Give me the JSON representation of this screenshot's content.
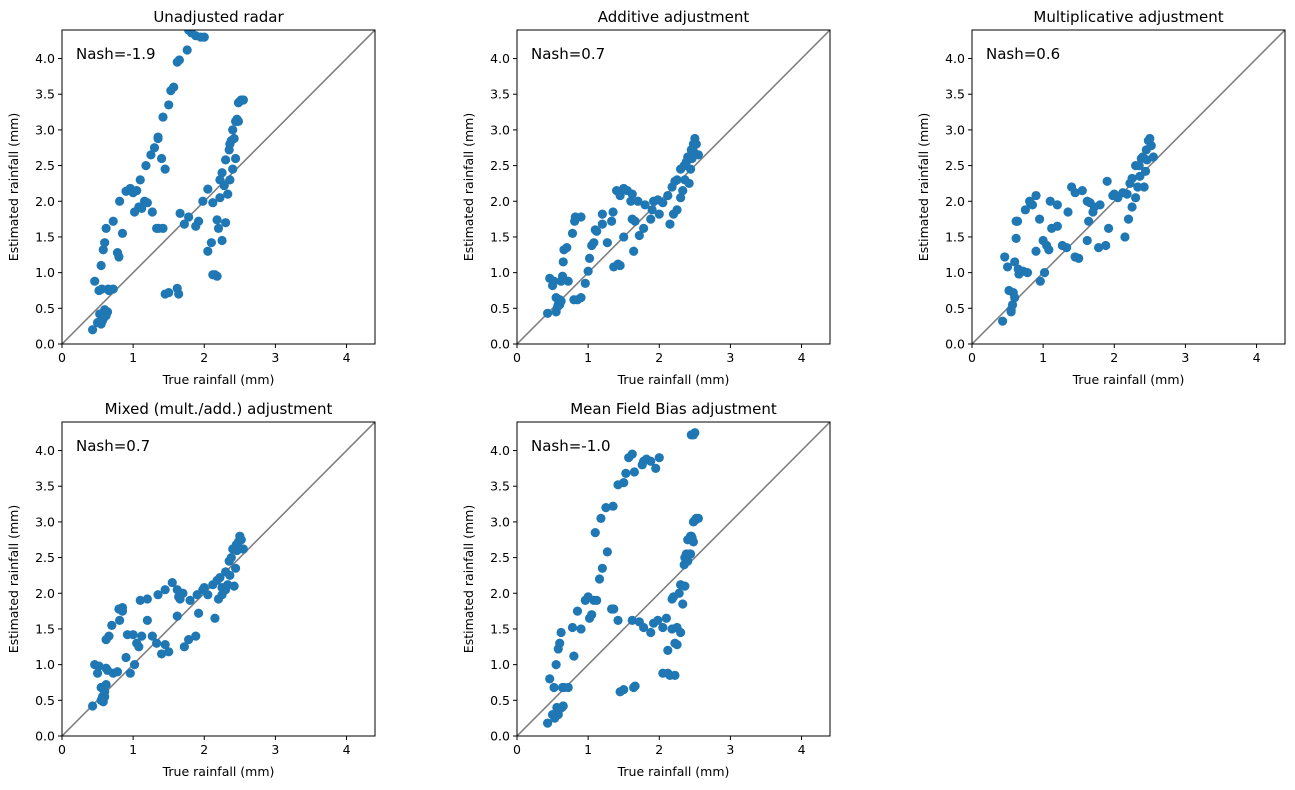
{
  "colors": {
    "points": "#1f77b4",
    "diagonal": "#808080",
    "frame": "#000000",
    "background": "#ffffff"
  },
  "chart_data": [
    {
      "type": "scatter",
      "title": "Unadjusted radar",
      "xlabel": "True rainfall (mm)",
      "ylabel": "Estimated rainfall (mm)",
      "xlim": [
        0,
        4.4
      ],
      "ylim": [
        0,
        4.4
      ],
      "xticks": [
        "0",
        "1",
        "2",
        "3",
        "4"
      ],
      "yticks": [
        "0.0",
        "0.5",
        "1.0",
        "1.5",
        "2.0",
        "2.5",
        "3.0",
        "3.5",
        "4.0"
      ],
      "annotation": "Nash=-1.9",
      "grid": false,
      "reference_line": "y=x",
      "x": [
        0.43,
        0.46,
        0.52,
        0.55,
        0.58,
        0.6,
        0.62,
        0.64,
        0.66,
        0.5,
        0.53,
        0.56,
        0.58,
        0.6,
        0.63,
        0.65,
        0.72,
        0.55,
        0.57,
        0.6,
        0.62,
        0.72,
        0.78,
        0.81,
        0.8,
        0.85,
        0.9,
        0.96,
        1.0,
        1.02,
        1.05,
        1.08,
        1.12,
        1.16,
        1.2,
        1.27,
        1.33,
        1.36,
        1.42,
        1.45,
        1.5,
        1.62,
        1.64,
        1.66,
        1.72,
        1.78,
        1.88,
        1.92,
        1.98,
        2.05,
        2.12,
        2.18,
        2.22,
        2.25,
        2.1,
        2.05,
        2.22,
        2.28,
        2.3,
        2.35,
        2.36,
        2.38,
        2.4,
        2.45,
        2.48,
        2.5,
        2.52,
        2.55,
        2.42,
        2.44,
        2.46,
        2.48,
        2.44,
        2.4,
        2.36,
        2.33,
        2.3,
        2.25,
        2.2,
        2.18,
        2.15,
        2.12,
        1.1,
        1.18,
        1.25,
        1.35,
        1.42,
        1.5,
        1.53,
        1.57,
        1.62,
        1.65,
        1.76,
        1.78,
        1.82,
        1.88,
        1.95,
        2.0,
        1.3,
        1.35,
        1.4,
        1.45
      ],
      "y": [
        0.2,
        0.88,
        0.75,
        1.1,
        1.32,
        1.42,
        1.62,
        0.45,
        0.75,
        0.3,
        0.42,
        0.77,
        0.36,
        0.48,
        0.45,
        0.77,
        0.77,
        0.28,
        0.33,
        0.38,
        0.4,
        1.72,
        1.28,
        2.0,
        1.22,
        1.55,
        2.14,
        2.18,
        2.12,
        1.85,
        2.15,
        1.92,
        1.9,
        2.0,
        1.98,
        1.85,
        1.62,
        1.62,
        1.62,
        0.7,
        0.72,
        0.78,
        0.7,
        1.83,
        1.68,
        1.78,
        1.65,
        1.72,
        2.0,
        2.17,
        1.98,
        1.74,
        2.3,
        2.4,
        1.42,
        1.3,
        2.05,
        2.22,
        2.58,
        2.72,
        2.8,
        2.85,
        3.0,
        3.12,
        3.38,
        3.4,
        3.42,
        3.42,
        2.88,
        3.12,
        3.15,
        3.12,
        2.6,
        2.45,
        2.3,
        2.1,
        1.7,
        1.45,
        1.62,
        0.95,
        0.97,
        0.97,
        2.3,
        2.5,
        2.65,
        2.9,
        3.18,
        3.35,
        3.55,
        3.6,
        3.95,
        3.98,
        4.12,
        4.4,
        4.36,
        4.32,
        4.3,
        4.3,
        2.75,
        2.88,
        2.6,
        2.45
      ]
    },
    {
      "type": "scatter",
      "title": "Additive adjustment",
      "xlabel": "True rainfall (mm)",
      "ylabel": "Estimated rainfall (mm)",
      "xlim": [
        0,
        4.4
      ],
      "ylim": [
        0,
        4.4
      ],
      "xticks": [
        "0",
        "1",
        "2",
        "3",
        "4"
      ],
      "yticks": [
        "0.0",
        "0.5",
        "1.0",
        "1.5",
        "2.0",
        "2.5",
        "3.0",
        "3.5",
        "4.0"
      ],
      "annotation": "Nash=0.7",
      "grid": false,
      "reference_line": "y=x",
      "x": [
        0.43,
        0.46,
        0.5,
        0.52,
        0.55,
        0.58,
        0.6,
        0.62,
        0.64,
        0.66,
        0.55,
        0.57,
        0.6,
        0.62,
        0.72,
        0.78,
        0.81,
        0.8,
        0.85,
        0.9,
        0.96,
        1.0,
        1.02,
        1.05,
        1.08,
        1.12,
        1.2,
        1.27,
        1.33,
        1.36,
        1.42,
        1.45,
        1.5,
        1.62,
        1.64,
        1.66,
        1.72,
        1.78,
        1.88,
        1.92,
        1.98,
        2.05,
        2.12,
        2.18,
        2.22,
        2.25,
        2.3,
        2.35,
        2.38,
        2.4,
        2.45,
        2.48,
        2.5,
        2.52,
        2.55,
        2.42,
        2.44,
        2.46,
        2.48,
        2.36,
        2.33,
        2.3,
        2.25,
        2.2,
        2.15,
        1.1,
        1.2,
        1.35,
        1.45,
        1.55,
        1.62,
        1.7,
        1.8,
        1.9,
        2.0,
        0.65,
        0.7,
        0.82,
        0.9,
        1.4,
        1.5,
        1.6
      ],
      "y": [
        0.43,
        0.92,
        0.82,
        0.88,
        0.65,
        0.55,
        0.62,
        0.88,
        0.95,
        1.32,
        0.45,
        0.52,
        0.55,
        0.6,
        0.88,
        1.55,
        1.72,
        0.62,
        0.62,
        0.65,
        0.85,
        1.02,
        1.2,
        1.38,
        1.42,
        1.58,
        1.82,
        1.42,
        1.72,
        1.08,
        1.12,
        1.1,
        1.5,
        1.75,
        1.3,
        1.72,
        1.52,
        1.62,
        1.75,
        2.0,
        2.02,
        1.98,
        2.08,
        2.2,
        2.28,
        2.3,
        2.45,
        2.5,
        2.55,
        2.62,
        2.72,
        2.8,
        2.88,
        2.8,
        2.65,
        2.25,
        2.45,
        2.6,
        2.7,
        2.3,
        2.15,
        2.05,
        1.88,
        1.82,
        1.68,
        1.6,
        1.68,
        1.85,
        2.08,
        2.15,
        2.1,
        2.0,
        1.95,
        1.88,
        1.82,
        1.15,
        1.35,
        1.78,
        1.78,
        2.15,
        2.18,
        2.0
      ],
      "_note": ""
    },
    {
      "type": "scatter",
      "title": "Multiplicative adjustment",
      "xlabel": "True rainfall (mm)",
      "ylabel": "Estimated rainfall (mm)",
      "xlim": [
        0,
        4.4
      ],
      "ylim": [
        0,
        4.4
      ],
      "xticks": [
        "0",
        "1",
        "2",
        "3",
        "4"
      ],
      "yticks": [
        "0.0",
        "0.5",
        "1.0",
        "1.5",
        "2.0",
        "2.5",
        "3.0",
        "3.5",
        "4.0"
      ],
      "annotation": "Nash=0.6",
      "grid": false,
      "reference_line": "y=x",
      "x": [
        0.43,
        0.46,
        0.5,
        0.52,
        0.55,
        0.58,
        0.6,
        0.62,
        0.64,
        0.66,
        0.55,
        0.57,
        0.6,
        0.62,
        0.72,
        0.78,
        0.81,
        0.85,
        0.9,
        0.96,
        1.0,
        1.02,
        1.05,
        1.08,
        1.12,
        1.2,
        1.27,
        1.33,
        1.4,
        1.45,
        1.5,
        1.62,
        1.64,
        1.66,
        1.72,
        1.78,
        1.88,
        1.92,
        1.98,
        2.05,
        2.12,
        2.18,
        2.22,
        2.25,
        2.3,
        2.35,
        2.38,
        2.4,
        2.45,
        2.48,
        2.5,
        2.52,
        2.55,
        2.42,
        2.44,
        2.46,
        2.36,
        2.33,
        2.3,
        2.25,
        2.2,
        2.15,
        1.1,
        1.2,
        1.35,
        1.45,
        1.55,
        1.62,
        1.7,
        1.8,
        1.9,
        2.0,
        0.65,
        0.75,
        0.82,
        0.9,
        0.95
      ],
      "y": [
        0.32,
        1.22,
        1.08,
        0.75,
        0.45,
        0.72,
        0.65,
        1.72,
        1.72,
        0.98,
        0.48,
        0.55,
        1.15,
        1.48,
        1.02,
        1.0,
        2.0,
        1.95,
        1.3,
        0.88,
        1.45,
        1.0,
        1.38,
        1.32,
        1.62,
        1.65,
        1.38,
        1.35,
        2.2,
        1.22,
        1.2,
        1.45,
        1.72,
        1.98,
        1.92,
        1.35,
        1.38,
        1.62,
        2.08,
        2.05,
        2.12,
        2.1,
        2.25,
        2.32,
        2.5,
        2.5,
        2.6,
        2.62,
        2.72,
        2.85,
        2.88,
        2.78,
        2.62,
        2.2,
        2.42,
        2.58,
        2.35,
        2.2,
        2.05,
        1.92,
        1.75,
        1.5,
        2.0,
        1.95,
        1.85,
        2.12,
        2.15,
        2.0,
        1.85,
        1.95,
        2.28,
        2.1,
        1.05,
        1.88,
        1.98,
        2.08,
        1.75
      ]
    },
    {
      "type": "scatter",
      "title": "Mixed (mult./add.) adjustment",
      "xlabel": "True rainfall (mm)",
      "ylabel": "Estimated rainfall (mm)",
      "xlim": [
        0,
        4.4
      ],
      "ylim": [
        0,
        4.4
      ],
      "xticks": [
        "0",
        "1",
        "2",
        "3",
        "4"
      ],
      "yticks": [
        "0.0",
        "0.5",
        "1.0",
        "1.5",
        "2.0",
        "2.5",
        "3.0",
        "3.5",
        "4.0"
      ],
      "annotation": "Nash=0.7",
      "grid": false,
      "reference_line": "y=x",
      "x": [
        0.43,
        0.46,
        0.5,
        0.52,
        0.55,
        0.58,
        0.6,
        0.62,
        0.64,
        0.66,
        0.55,
        0.57,
        0.6,
        0.62,
        0.72,
        0.78,
        0.81,
        0.85,
        0.9,
        0.96,
        1.0,
        1.02,
        1.05,
        1.08,
        1.12,
        1.2,
        1.27,
        1.33,
        1.4,
        1.45,
        1.5,
        1.62,
        1.64,
        1.66,
        1.72,
        1.78,
        1.88,
        1.92,
        1.98,
        2.05,
        2.12,
        2.18,
        2.22,
        2.25,
        2.3,
        2.35,
        2.38,
        2.4,
        2.45,
        2.48,
        2.5,
        2.52,
        2.55,
        2.42,
        2.44,
        2.46,
        2.36,
        2.33,
        2.3,
        2.25,
        2.2,
        2.15,
        1.1,
        1.2,
        1.35,
        1.45,
        1.55,
        1.62,
        1.7,
        1.8,
        1.9,
        2.0,
        0.62,
        0.7,
        0.8,
        0.85,
        0.92
      ],
      "y": [
        0.42,
        1.0,
        0.88,
        0.98,
        0.68,
        0.48,
        0.55,
        0.95,
        0.92,
        1.4,
        0.5,
        0.55,
        0.62,
        0.72,
        0.88,
        0.9,
        1.62,
        1.8,
        1.1,
        0.88,
        1.42,
        1.0,
        1.3,
        1.25,
        1.4,
        1.62,
        1.4,
        1.3,
        1.15,
        1.28,
        1.18,
        1.68,
        1.95,
        1.92,
        1.25,
        1.35,
        1.4,
        1.72,
        2.05,
        1.98,
        2.12,
        2.18,
        2.22,
        2.08,
        2.3,
        2.45,
        2.5,
        2.62,
        2.68,
        2.72,
        2.8,
        2.75,
        2.62,
        2.1,
        2.35,
        2.6,
        2.25,
        2.12,
        2.05,
        1.98,
        1.92,
        1.65,
        1.9,
        1.92,
        1.98,
        2.05,
        2.15,
        2.05,
        2.0,
        1.9,
        1.98,
        2.08,
        1.35,
        1.55,
        1.78,
        1.75,
        1.42
      ]
    },
    {
      "type": "scatter",
      "title": "Mean Field Bias adjustment",
      "xlabel": "True rainfall (mm)",
      "ylabel": "Estimated rainfall (mm)",
      "xlim": [
        0,
        4.4
      ],
      "ylim": [
        0,
        4.4
      ],
      "xticks": [
        "0",
        "1",
        "2",
        "3",
        "4"
      ],
      "yticks": [
        "0.0",
        "0.5",
        "1.0",
        "1.5",
        "2.0",
        "2.5",
        "3.0",
        "3.5",
        "4.0"
      ],
      "annotation": "Nash=-1.0",
      "grid": false,
      "reference_line": "y=x",
      "x": [
        0.43,
        0.46,
        0.52,
        0.55,
        0.58,
        0.6,
        0.62,
        0.64,
        0.66,
        0.5,
        0.53,
        0.56,
        0.58,
        0.6,
        0.63,
        0.65,
        0.72,
        0.78,
        0.8,
        0.85,
        0.9,
        0.96,
        1.0,
        1.02,
        1.05,
        1.08,
        1.12,
        1.16,
        1.2,
        1.27,
        1.33,
        1.36,
        1.42,
        1.45,
        1.5,
        1.62,
        1.64,
        1.66,
        1.72,
        1.78,
        1.88,
        1.92,
        1.98,
        2.05,
        2.12,
        2.18,
        2.22,
        2.25,
        2.1,
        2.05,
        2.22,
        2.28,
        2.3,
        2.35,
        2.36,
        2.38,
        2.4,
        2.45,
        2.48,
        2.5,
        2.52,
        2.55,
        2.42,
        2.44,
        2.46,
        2.48,
        2.44,
        2.4,
        2.36,
        2.33,
        2.3,
        2.25,
        2.2,
        2.18,
        2.15,
        2.12,
        1.1,
        1.18,
        1.25,
        1.35,
        1.42,
        1.5,
        1.53,
        1.57,
        1.62,
        1.65,
        1.76,
        1.78,
        1.82,
        1.88,
        1.95,
        2.0,
        2.45,
        2.48,
        2.5
      ],
      "y": [
        0.18,
        0.8,
        0.68,
        1.0,
        1.22,
        1.3,
        1.45,
        0.68,
        0.68,
        0.3,
        0.25,
        0.4,
        0.3,
        0.38,
        0.4,
        0.42,
        0.68,
        1.52,
        1.12,
        1.75,
        1.5,
        1.9,
        1.95,
        1.65,
        1.7,
        1.9,
        1.9,
        2.2,
        2.35,
        2.58,
        1.78,
        1.78,
        1.62,
        0.62,
        0.65,
        1.62,
        0.68,
        0.7,
        1.6,
        1.52,
        1.45,
        1.58,
        1.62,
        1.52,
        1.2,
        1.5,
        1.3,
        1.52,
        1.65,
        0.88,
        0.85,
        2.0,
        2.12,
        2.4,
        2.5,
        2.55,
        2.75,
        2.8,
        3.0,
        3.02,
        3.05,
        3.05,
        2.55,
        2.8,
        2.78,
        2.72,
        2.55,
        2.45,
        2.1,
        1.85,
        1.45,
        1.28,
        1.95,
        1.92,
        0.85,
        0.88,
        2.85,
        3.05,
        3.2,
        3.22,
        3.52,
        3.55,
        3.68,
        3.9,
        3.95,
        3.7,
        3.8,
        3.85,
        3.88,
        3.85,
        3.75,
        3.9,
        4.22,
        4.22,
        4.25
      ]
    }
  ]
}
